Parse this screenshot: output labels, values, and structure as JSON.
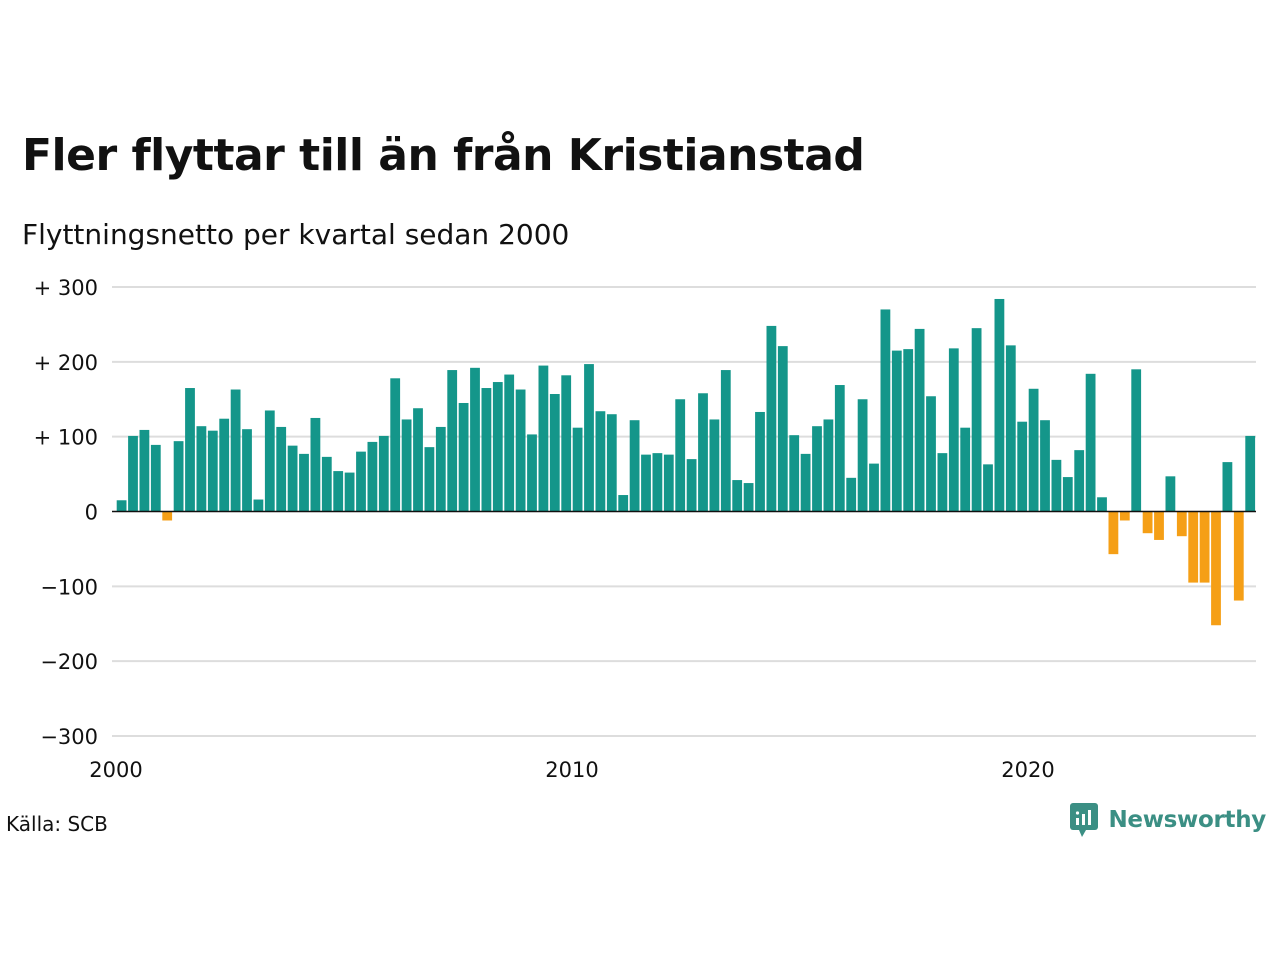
{
  "title": "Fler flyttar till än från Kristianstad",
  "subtitle": "Flyttningsnetto per kvartal sedan 2000",
  "source": "Källa: SCB",
  "brand": {
    "name": "Newsworthy",
    "icon": "newsworthy-logo-icon",
    "color": "#3b8f84"
  },
  "colors": {
    "positive": "#14968a",
    "negative": "#f59f16",
    "grid": "#dddddd",
    "zero_line": "#111111"
  },
  "chart_data": {
    "type": "bar",
    "title": "Fler flyttar till än från Kristianstad",
    "subtitle": "Flyttningsnetto per kvartal sedan 2000",
    "xlabel": "",
    "ylabel": "",
    "ylim": [
      -300,
      300
    ],
    "yticks": [
      {
        "value": 300,
        "label": "+ 300"
      },
      {
        "value": 200,
        "label": "+ 200"
      },
      {
        "value": 100,
        "label": "+ 100"
      },
      {
        "value": 0,
        "label": "0"
      },
      {
        "value": -100,
        "label": "−100"
      },
      {
        "value": -200,
        "label": "−200"
      },
      {
        "value": -300,
        "label": "−300"
      }
    ],
    "xticks": [
      {
        "year": 2000,
        "label": "2000"
      },
      {
        "year": 2010,
        "label": "2010"
      },
      {
        "year": 2020,
        "label": "2020"
      }
    ],
    "grid": true,
    "start_year": 2000,
    "quarters_per_year": 4,
    "values": [
      15,
      101,
      109,
      89,
      -12,
      94,
      165,
      114,
      108,
      124,
      163,
      110,
      16,
      135,
      113,
      88,
      77,
      125,
      73,
      54,
      52,
      80,
      93,
      101,
      178,
      123,
      138,
      86,
      113,
      189,
      145,
      192,
      165,
      173,
      183,
      163,
      103,
      195,
      157,
      182,
      112,
      197,
      134,
      130,
      22,
      122,
      76,
      78,
      76,
      150,
      70,
      158,
      123,
      189,
      42,
      38,
      133,
      248,
      221,
      102,
      77,
      114,
      123,
      169,
      45,
      150,
      64,
      270,
      215,
      217,
      244,
      154,
      78,
      218,
      112,
      245,
      63,
      284,
      222,
      120,
      164,
      122,
      69,
      46,
      82,
      184,
      19,
      -57,
      -12,
      190,
      -29,
      -38,
      47,
      -33,
      -95,
      -95,
      -152,
      66,
      -119,
      101
    ]
  }
}
